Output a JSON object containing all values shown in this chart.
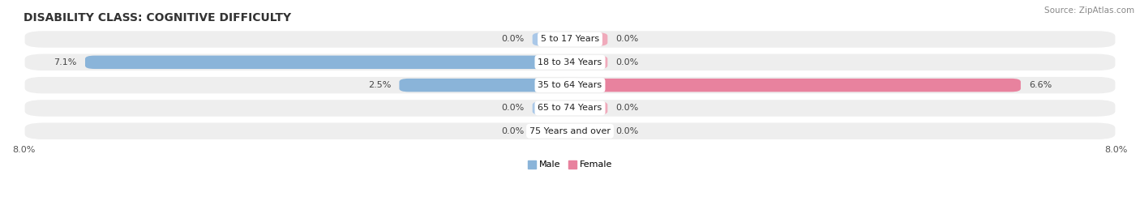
{
  "title": "DISABILITY CLASS: COGNITIVE DIFFICULTY",
  "source": "Source: ZipAtlas.com",
  "categories": [
    "5 to 17 Years",
    "18 to 34 Years",
    "35 to 64 Years",
    "65 to 74 Years",
    "75 Years and over"
  ],
  "male_values": [
    0.0,
    7.1,
    2.5,
    0.0,
    0.0
  ],
  "female_values": [
    0.0,
    0.0,
    6.6,
    0.0,
    0.0
  ],
  "max_val": 8.0,
  "male_color": "#8ab4d9",
  "female_color": "#e8829e",
  "female_stub_color": "#f0aabb",
  "male_stub_color": "#aac8e8",
  "row_bg_color": "#eeeeee",
  "title_fontsize": 10,
  "label_fontsize": 8,
  "tick_fontsize": 8,
  "source_fontsize": 7.5,
  "stub_val": 0.55
}
